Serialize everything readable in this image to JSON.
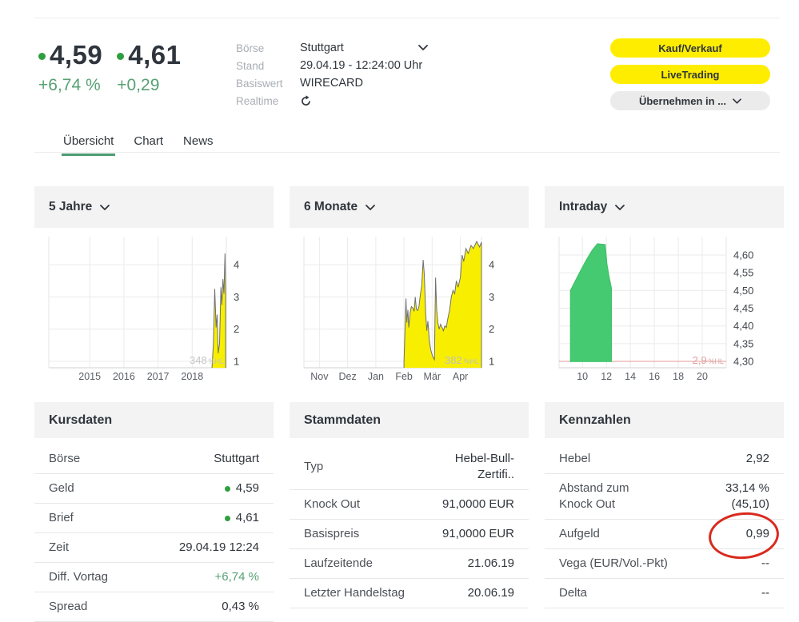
{
  "header": {
    "bid": "4,59",
    "ask": "4,61",
    "change_pct": "+6,74 %",
    "change_abs": "+0,29",
    "info_rows": [
      {
        "label": "Börse",
        "value": "Stuttgart",
        "dropdown": true
      },
      {
        "label": "Stand",
        "value": "29.04.19 - 12:24:00 Uhr"
      },
      {
        "label": "Basiswert",
        "value": "WIRECARD"
      },
      {
        "label": "Realtime",
        "icon": "refresh"
      }
    ],
    "buttons": [
      {
        "label": "Kauf/Verkauf",
        "style": "yellow"
      },
      {
        "label": "LiveTrading",
        "style": "yellow"
      },
      {
        "label": "Übernehmen in ...",
        "style": "grey",
        "dropdown": true
      }
    ]
  },
  "tabs": [
    {
      "label": "Übersicht",
      "active": true
    },
    {
      "label": "Chart",
      "active": false
    },
    {
      "label": "News",
      "active": false
    }
  ],
  "chart_data": [
    {
      "type": "area",
      "title": "5 Jahre",
      "dropdown": true,
      "xlim": [
        2013.8,
        2019.0
      ],
      "ylim": [
        0.8,
        4.87
      ],
      "plot_right": 240,
      "baseline": 0.8,
      "xticks": [
        {
          "v": 2015,
          "label": "2015"
        },
        {
          "v": 2016,
          "label": "2016"
        },
        {
          "v": 2017,
          "label": "2017"
        },
        {
          "v": 2018,
          "label": "2018"
        }
      ],
      "yticks": [
        {
          "v": 1,
          "label": "1"
        },
        {
          "v": 2,
          "label": "2"
        },
        {
          "v": 3,
          "label": "3"
        },
        {
          "v": 4,
          "label": "4"
        }
      ],
      "fill": "#f8ef00",
      "stroke": "#6f6f6f",
      "watermark": {
        "value": "348",
        "unit": "%HL",
        "color": "#c6c6c6"
      },
      "points": [
        [
          2018.58,
          0.82
        ],
        [
          2018.62,
          1.55
        ],
        [
          2018.66,
          3.25
        ],
        [
          2018.7,
          2.05
        ],
        [
          2018.73,
          2.45
        ],
        [
          2018.76,
          1.25
        ],
        [
          2018.8,
          1.55
        ],
        [
          2018.84,
          3.3
        ],
        [
          2018.87,
          2.75
        ],
        [
          2018.9,
          3.55
        ],
        [
          2018.93,
          3.1
        ],
        [
          2018.96,
          4.35
        ],
        [
          2018.98,
          3.2
        ]
      ]
    },
    {
      "type": "area",
      "title": "6 Monate",
      "dropdown": true,
      "xlim": [
        -0.55,
        5.75
      ],
      "ylim": [
        0.8,
        4.87
      ],
      "plot_right": 240,
      "baseline": 0.8,
      "xticks": [
        {
          "v": 0,
          "label": "Nov"
        },
        {
          "v": 1,
          "label": "Dez"
        },
        {
          "v": 2,
          "label": "Jan"
        },
        {
          "v": 3,
          "label": "Feb"
        },
        {
          "v": 4,
          "label": "Mär"
        },
        {
          "v": 5,
          "label": "Apr"
        }
      ],
      "yticks": [
        {
          "v": 1,
          "label": "1"
        },
        {
          "v": 2,
          "label": "2"
        },
        {
          "v": 3,
          "label": "3"
        },
        {
          "v": 4,
          "label": "4"
        }
      ],
      "fill": "#f8ef00",
      "stroke": "#6f6f6f",
      "watermark": {
        "value": "382",
        "unit": "%HL",
        "color": "#c0c0c0"
      },
      "points": [
        [
          3.0,
          0.95
        ],
        [
          3.04,
          2.1
        ],
        [
          3.07,
          2.95
        ],
        [
          3.1,
          2.2
        ],
        [
          3.14,
          2.6
        ],
        [
          3.17,
          2.05
        ],
        [
          3.22,
          2.5
        ],
        [
          3.26,
          2.7
        ],
        [
          3.32,
          2.65
        ],
        [
          3.36,
          2.55
        ],
        [
          3.4,
          3.0
        ],
        [
          3.44,
          2.62
        ],
        [
          3.49,
          2.58
        ],
        [
          3.53,
          2.7
        ],
        [
          3.58,
          3.05
        ],
        [
          3.63,
          3.35
        ],
        [
          3.68,
          4.15
        ],
        [
          3.72,
          3.7
        ],
        [
          3.77,
          2.5
        ],
        [
          3.81,
          1.95
        ],
        [
          3.85,
          2.25
        ],
        [
          3.9,
          1.65
        ],
        [
          3.95,
          1.35
        ],
        [
          4.02,
          1.15
        ],
        [
          4.08,
          1.05
        ],
        [
          4.12,
          3.6
        ],
        [
          4.16,
          2.6
        ],
        [
          4.2,
          2.2
        ],
        [
          4.25,
          2.0
        ],
        [
          4.3,
          2.15
        ],
        [
          4.35,
          2.05
        ],
        [
          4.4,
          1.95
        ],
        [
          4.45,
          2.1
        ],
        [
          4.5,
          2.05
        ],
        [
          4.55,
          2.3
        ],
        [
          4.62,
          2.6
        ],
        [
          4.68,
          3.0
        ],
        [
          4.74,
          3.2
        ],
        [
          4.8,
          3.1
        ],
        [
          4.86,
          3.5
        ],
        [
          4.92,
          3.3
        ],
        [
          5.0,
          3.6
        ],
        [
          5.06,
          4.3
        ],
        [
          5.12,
          4.1
        ],
        [
          5.2,
          4.5
        ],
        [
          5.28,
          4.35
        ],
        [
          5.38,
          4.6
        ],
        [
          5.46,
          4.5
        ],
        [
          5.58,
          4.72
        ],
        [
          5.68,
          4.55
        ],
        [
          5.75,
          4.7
        ]
      ]
    },
    {
      "type": "area",
      "title": "Intraday",
      "dropdown": true,
      "xlim": [
        8.05,
        22.0
      ],
      "ylim": [
        4.282,
        4.652
      ],
      "plot_right": 227,
      "baseline": 4.298,
      "xticks": [
        {
          "v": 10,
          "label": "10"
        },
        {
          "v": 12,
          "label": "12"
        },
        {
          "v": 14,
          "label": "14"
        },
        {
          "v": 16,
          "label": "16"
        },
        {
          "v": 18,
          "label": "18"
        },
        {
          "v": 20,
          "label": "20"
        }
      ],
      "yticks": [
        {
          "v": 4.6,
          "label": "4,60"
        },
        {
          "v": 4.55,
          "label": "4,55"
        },
        {
          "v": 4.5,
          "label": "4,50"
        },
        {
          "v": 4.45,
          "label": "4,45"
        },
        {
          "v": 4.4,
          "label": "4,40"
        },
        {
          "v": 4.35,
          "label": "4,35"
        },
        {
          "v": 4.3,
          "label": "4,30"
        }
      ],
      "fill": "#45c971",
      "stroke": "#3fbf68",
      "hline": {
        "v": 4.3,
        "color": "#e59898"
      },
      "watermark": {
        "value": "2,9",
        "unit": "%HL",
        "color": "#dfa3a0"
      },
      "points": [
        [
          9.0,
          4.5
        ],
        [
          9.3,
          4.52
        ],
        [
          9.8,
          4.553
        ],
        [
          10.3,
          4.585
        ],
        [
          10.8,
          4.613
        ],
        [
          11.25,
          4.632
        ],
        [
          11.9,
          4.63
        ],
        [
          12.05,
          4.575
        ],
        [
          12.25,
          4.535
        ],
        [
          12.42,
          4.507
        ]
      ]
    }
  ],
  "tables": [
    {
      "title": "Kursdaten",
      "rows": [
        {
          "label": "Börse",
          "value": "Stuttgart"
        },
        {
          "label": "Geld",
          "value": "4,59",
          "dot": true
        },
        {
          "label": "Brief",
          "value": "4,61",
          "dot": true
        },
        {
          "label": "Zeit",
          "value": "29.04.19 12:24"
        },
        {
          "label": "Diff. Vortag",
          "value": "+6,74 %",
          "green": true
        },
        {
          "label": "Spread",
          "value": "0,43 %"
        }
      ]
    },
    {
      "title": "Stammdaten",
      "rows": [
        {
          "label": "Typ",
          "value": "Hebel-Bull-\nZertifi.."
        },
        {
          "label": "Knock Out",
          "value": "91,0000 EUR"
        },
        {
          "label": "Basispreis",
          "value": "91,0000 EUR"
        },
        {
          "label": "Laufzeitende",
          "value": "21.06.19"
        },
        {
          "label": "Letzter Handelstag",
          "value": "20.06.19"
        }
      ]
    },
    {
      "title": "Kennzahlen",
      "rows": [
        {
          "label": "Hebel",
          "value": "2,92"
        },
        {
          "label": "Abstand zum\nKnock Out",
          "value": "33,14 %\n(45,10)"
        },
        {
          "label": "Aufgeld",
          "value": "0,99",
          "annotated": true
        },
        {
          "label": "Vega (EUR/Vol.-Pkt)",
          "value": "--"
        },
        {
          "label": "Delta",
          "value": "--"
        }
      ]
    }
  ],
  "annotation": {
    "shape": "ellipse",
    "color": "#d92a1e",
    "around": "Aufgeld 0,99"
  },
  "colors": {
    "dot_green": "#2f9e41",
    "text_green": "#57a173",
    "tab_underline_green": "#4d9b70",
    "button_yellow": "#ffed00",
    "button_grey": "#ebebeb",
    "chart_yellow": "#f8ef00",
    "chart_green": "#45c971",
    "chart_redline": "#e59898",
    "annotation_red": "#d92a1e"
  }
}
